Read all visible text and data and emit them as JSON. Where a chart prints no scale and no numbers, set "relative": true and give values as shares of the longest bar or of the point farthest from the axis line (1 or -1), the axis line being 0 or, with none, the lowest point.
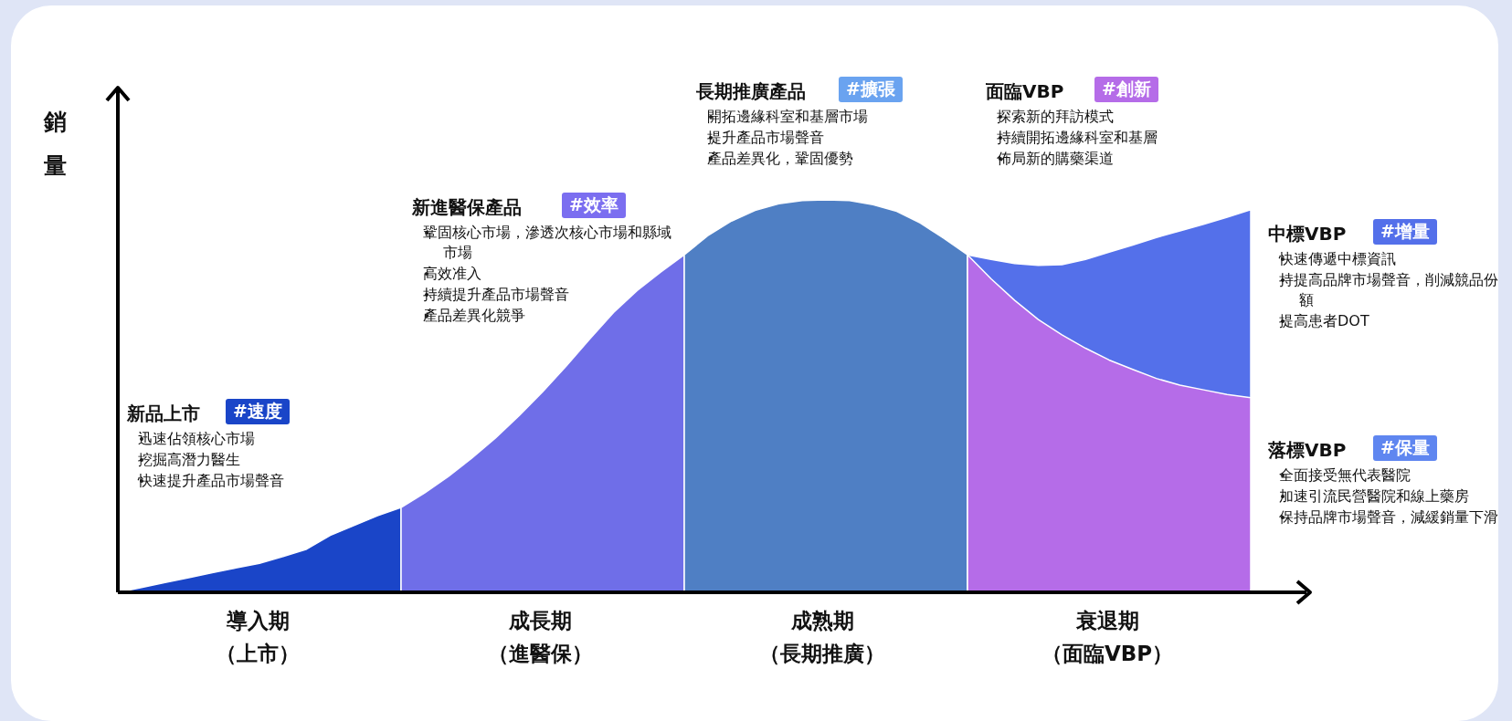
{
  "chart_data": {
    "type": "area",
    "relative": true,
    "ylabel": "銷量",
    "categories": [
      null,
      null,
      null,
      null,
      null,
      null,
      null,
      null,
      null,
      null,
      null,
      null,
      null,
      null,
      null,
      null,
      null,
      null,
      null,
      null,
      null,
      null,
      null,
      null,
      null,
      null,
      null,
      null,
      null,
      null,
      null,
      null,
      null,
      null,
      null,
      null,
      null,
      null,
      null,
      null,
      null,
      null,
      null,
      null,
      null,
      null,
      null,
      null,
      null
    ],
    "series": [
      {
        "color": "#1a45c8",
        "values": [
          0,
          0.012,
          0.025,
          0.037,
          0.05,
          0.062,
          0.074,
          0.091,
          0.11,
          0.145,
          0.17,
          0.195,
          0.216,
          null,
          null,
          null,
          null,
          null,
          null,
          null,
          null,
          null,
          null,
          null,
          null,
          null,
          null,
          null,
          null,
          null,
          null,
          null,
          null,
          null,
          null,
          null,
          null,
          null,
          null,
          null,
          null,
          null,
          null,
          null,
          null,
          null,
          null,
          null,
          null
        ]
      },
      {
        "color": "#6f6ee8",
        "values": [
          null,
          null,
          null,
          null,
          null,
          null,
          null,
          null,
          null,
          null,
          null,
          null,
          0.216,
          0.253,
          0.295,
          0.342,
          0.393,
          0.45,
          0.511,
          0.577,
          0.646,
          0.713,
          0.769,
          0.816,
          0.86,
          null,
          null,
          null,
          null,
          null,
          null,
          null,
          null,
          null,
          null,
          null,
          null,
          null,
          null,
          null,
          null,
          null,
          null,
          null,
          null,
          null,
          null,
          null,
          null
        ]
      },
      {
        "color": "#4f7fc4",
        "values": [
          null,
          null,
          null,
          null,
          null,
          null,
          null,
          null,
          null,
          null,
          null,
          null,
          null,
          null,
          null,
          null,
          null,
          null,
          null,
          null,
          null,
          null,
          null,
          null,
          0.86,
          0.909,
          0.946,
          0.973,
          0.99,
          0.998,
          1.0,
          0.998,
          0.988,
          0.971,
          0.941,
          0.902,
          0.86,
          null,
          null,
          null,
          null,
          null,
          null,
          null,
          null,
          null,
          null,
          null,
          null
        ]
      },
      {
        "color": "#5470ea",
        "values": [
          null,
          null,
          null,
          null,
          null,
          null,
          null,
          null,
          null,
          null,
          null,
          null,
          null,
          null,
          null,
          null,
          null,
          null,
          null,
          null,
          null,
          null,
          null,
          null,
          null,
          null,
          null,
          null,
          null,
          null,
          null,
          null,
          null,
          null,
          null,
          null,
          0.86,
          0.848,
          0.838,
          0.833,
          0.835,
          0.848,
          0.867,
          0.885,
          0.904,
          0.921,
          0.938,
          0.956,
          0.975
        ]
      },
      {
        "color": "#b56ce8",
        "values": [
          null,
          null,
          null,
          null,
          null,
          null,
          null,
          null,
          null,
          null,
          null,
          null,
          null,
          null,
          null,
          null,
          null,
          null,
          null,
          null,
          null,
          null,
          null,
          null,
          null,
          null,
          null,
          null,
          null,
          null,
          null,
          null,
          null,
          null,
          null,
          null,
          0.86,
          0.799,
          0.744,
          0.695,
          0.656,
          0.622,
          0.592,
          0.568,
          0.545,
          0.528,
          0.516,
          0.504,
          0.496
        ]
      }
    ],
    "annotations": [
      "新品上市",
      "#速度",
      "迅速佔領核心市場",
      "挖掘高潛力醫生",
      "快速提升產品市場聲音",
      "新進醫保產品",
      "#效率",
      "鞏固核心市場，滲透次核心市場和縣域市場",
      "高效准入",
      "持續提升產品市場聲音",
      "產品差異化競爭",
      "長期推廣產品",
      "#擴張",
      "開拓邊緣科室和基層市場",
      "提升產品市場聲音",
      "產品差異化，鞏固優勢",
      "面臨VBP",
      "#創新",
      "探索新的拜訪模式",
      "持續開拓邊緣科室和基層",
      "佈局新的購藥渠道",
      "中標VBP",
      "#增量",
      "快速傳遞中標資訊",
      "持提高品牌市場聲音，削減競品份額",
      "提高患者DOT",
      "落標VBP",
      "#保量",
      "全面接受無代表醫院",
      "加速引流民營醫院和線上藥房",
      "保持品牌市場聲音，減緩銷量下滑",
      "導入期",
      "（上市）",
      "成長期",
      "（進醫保）",
      "成熟期",
      "（長期推廣）",
      "衰退期",
      "（面臨VBP）"
    ]
  }
}
